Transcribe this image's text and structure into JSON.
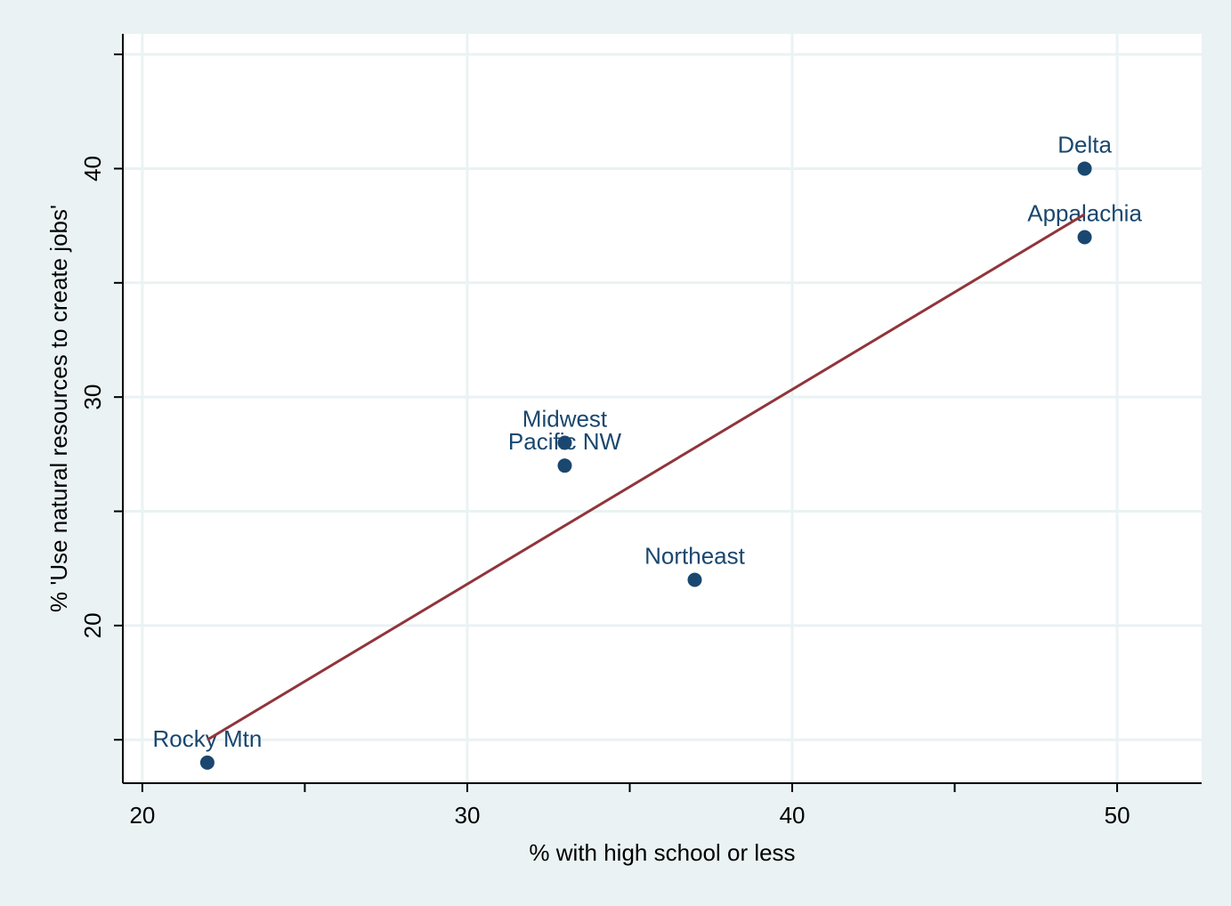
{
  "chart_data": {
    "type": "scatter",
    "xlabel": "% with high school or less",
    "ylabel": "% 'Use natural resources to create jobs'",
    "x": [
      22,
      33,
      33,
      37,
      49,
      49
    ],
    "values": [
      14,
      28,
      27,
      22,
      40,
      37
    ],
    "labels": [
      "Rocky Mtn",
      "Midwest",
      "Pacific NW",
      "Northeast",
      "Delta",
      "Appalachia"
    ],
    "color": "#1a476f",
    "fit": {
      "x": [
        22,
        49
      ],
      "values": [
        15,
        38
      ],
      "color": "#90353b"
    },
    "xlim": [
      19.4,
      52.6
    ],
    "ylim": [
      13.1,
      45.9
    ],
    "xticks": [
      20,
      30,
      40,
      50
    ],
    "xminor": [
      25,
      35,
      45
    ],
    "yticks": [
      20,
      30,
      40
    ],
    "yminor": [
      15,
      25,
      35,
      45
    ],
    "grid": true
  }
}
